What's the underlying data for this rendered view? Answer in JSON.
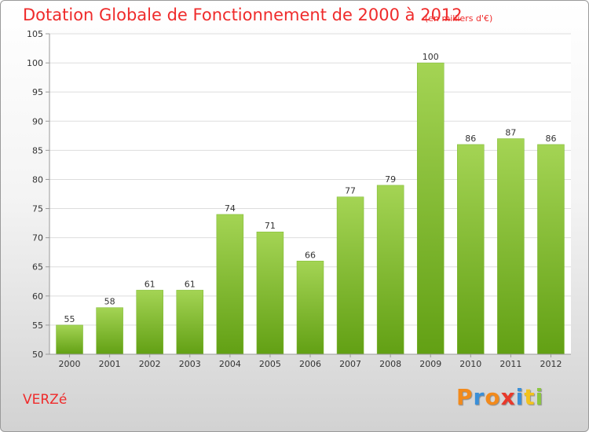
{
  "header": {
    "title": "Dotation Globale de Fonctionnement de 2000 à 2012",
    "subtitle": "(en milliers d'€)"
  },
  "footer": {
    "commune": "VERZé",
    "brand": "Proxiti"
  },
  "colors": {
    "title": "#ef2b2b",
    "bar_top": "#a4d454",
    "bar_bottom": "#62a014",
    "grid": "#dddddd",
    "brand_letters": [
      "#f28a1c",
      "#3a8fd8",
      "#f28a1c",
      "#e8392b",
      "#3a8fd8",
      "#f2c21c",
      "#8cc63f"
    ]
  },
  "chart_data": {
    "type": "bar",
    "categories": [
      "2000",
      "2001",
      "2002",
      "2003",
      "2004",
      "2005",
      "2006",
      "2007",
      "2008",
      "2009",
      "2010",
      "2011",
      "2012"
    ],
    "values": [
      55,
      58,
      61,
      61,
      74,
      71,
      66,
      77,
      79,
      100,
      86,
      87,
      86
    ],
    "title": "Dotation Globale de Fonctionnement de 2000 à 2012",
    "subtitle": "(en milliers d'€)",
    "xlabel": "",
    "ylabel": "",
    "ylim": [
      50,
      105
    ],
    "yticks": [
      50,
      55,
      60,
      65,
      70,
      75,
      80,
      85,
      90,
      95,
      100,
      105
    ],
    "grid": true,
    "legend": "none"
  }
}
